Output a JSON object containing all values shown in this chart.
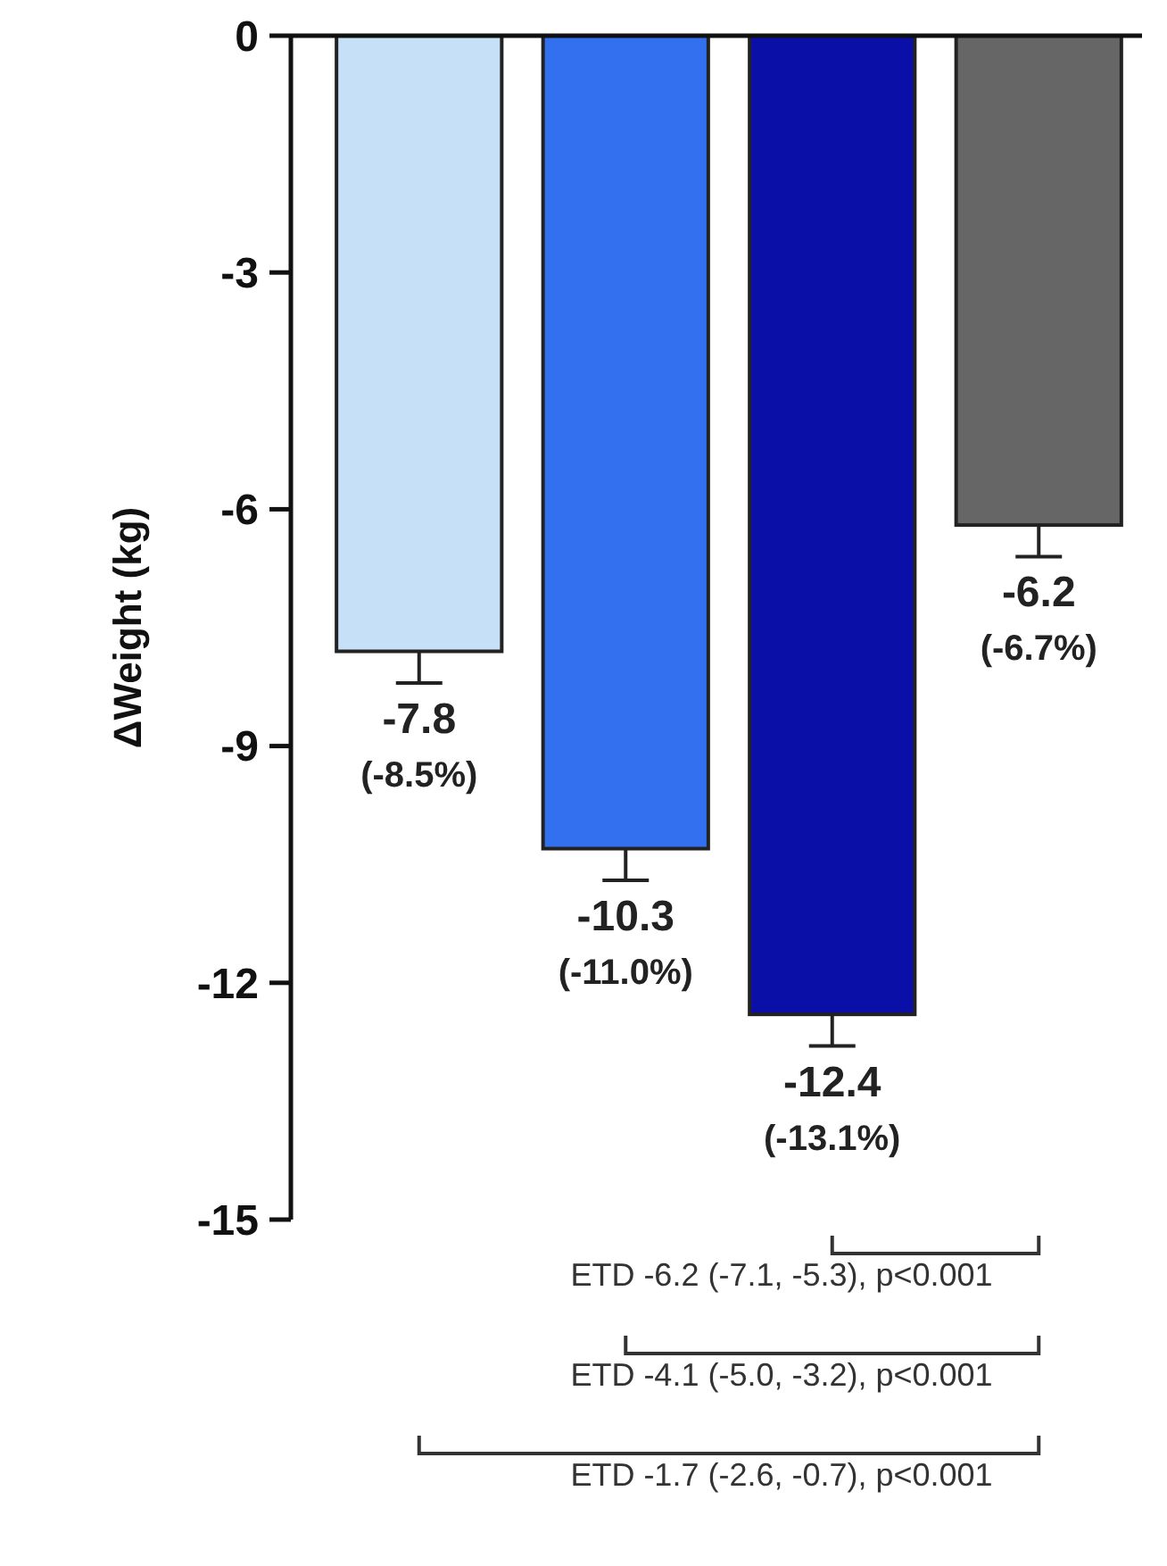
{
  "chart_data": {
    "type": "bar",
    "ylabel": "ΔWeight (kg)",
    "categories": [
      null,
      null,
      null,
      null
    ],
    "values": [
      -7.8,
      -10.3,
      -12.4,
      -6.2
    ],
    "colors": [
      "#c5e0f7",
      "#3370f0",
      "#0a0fa8",
      "#666666"
    ],
    "errors": [
      [
        -8.2,
        -7.8
      ],
      [
        -10.7,
        -10.3
      ],
      [
        -12.8,
        -12.4
      ],
      [
        -6.6,
        -6.2
      ]
    ],
    "value_labels": [
      "-7.8\n(-8.5%)",
      "-10.3\n(-11.0%)",
      "-12.4\n(-13.1%)",
      "-6.2\n(-6.7%)"
    ],
    "ylim": [
      -15,
      0
    ],
    "yticks": [
      0,
      -3,
      -6,
      -9,
      -12,
      -15
    ],
    "annotations": [
      "ETD -6.2 (-7.1, -5.3), p<0.001",
      "ETD -4.1 (-5.0, -3.2), p<0.001",
      "ETD -1.7 (-2.6, -0.7), p<0.001"
    ],
    "grid": false
  }
}
